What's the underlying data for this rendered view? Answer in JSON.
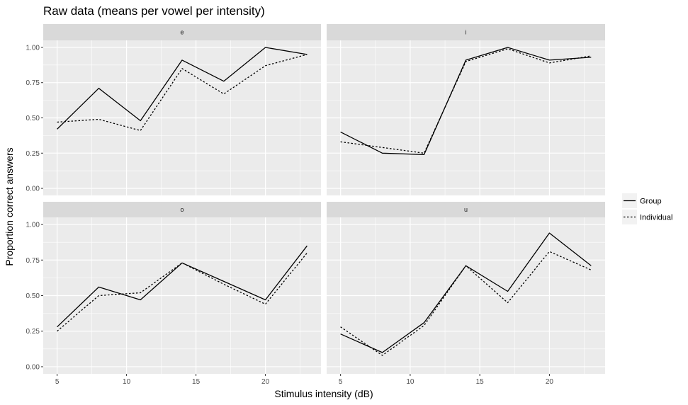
{
  "chart_data": {
    "type": "line",
    "title": "Raw data (means per vowel per intensity)",
    "xlabel": "Stimulus intensity (dB)",
    "ylabel": "Proportion correct answers",
    "x_ticks": [
      5,
      10,
      15,
      20
    ],
    "y_ticks": [
      "0.00",
      "0.25",
      "0.50",
      "0.75",
      "1.00"
    ],
    "xlim": [
      4,
      24
    ],
    "ylim": [
      -0.05,
      1.05
    ],
    "grid": true,
    "legend": {
      "placement": "right",
      "entries": [
        {
          "name": "Group",
          "style": "solid"
        },
        {
          "name": "Individual",
          "style": "dotted"
        }
      ]
    },
    "x": [
      5,
      8,
      11,
      14,
      17,
      20,
      23
    ],
    "panels": [
      {
        "label": "e",
        "series": [
          {
            "name": "Group",
            "values": [
              0.42,
              0.71,
              0.48,
              0.91,
              0.76,
              1.0,
              0.95
            ]
          },
          {
            "name": "Individual",
            "values": [
              0.47,
              0.49,
              0.41,
              0.85,
              0.67,
              0.87,
              0.95
            ]
          }
        ]
      },
      {
        "label": "i",
        "series": [
          {
            "name": "Group",
            "values": [
              0.4,
              0.25,
              0.24,
              0.91,
              1.0,
              0.91,
              0.93
            ]
          },
          {
            "name": "Individual",
            "values": [
              0.33,
              0.29,
              0.25,
              0.9,
              0.99,
              0.89,
              0.94
            ]
          }
        ]
      },
      {
        "label": "o",
        "series": [
          {
            "name": "Group",
            "values": [
              0.28,
              0.56,
              0.47,
              0.73,
              0.6,
              0.47,
              0.85
            ]
          },
          {
            "name": "Individual",
            "values": [
              0.25,
              0.5,
              0.52,
              0.73,
              0.58,
              0.44,
              0.8
            ]
          }
        ]
      },
      {
        "label": "u",
        "series": [
          {
            "name": "Group",
            "values": [
              0.23,
              0.1,
              0.31,
              0.71,
              0.53,
              0.94,
              0.71
            ]
          },
          {
            "name": "Individual",
            "values": [
              0.28,
              0.08,
              0.29,
              0.71,
              0.45,
              0.81,
              0.68
            ]
          }
        ]
      }
    ]
  },
  "colors": {
    "panel_bg": "#ebebeb",
    "strip_bg": "#d9d9d9",
    "grid_major": "#ffffff",
    "line": "#000000"
  }
}
